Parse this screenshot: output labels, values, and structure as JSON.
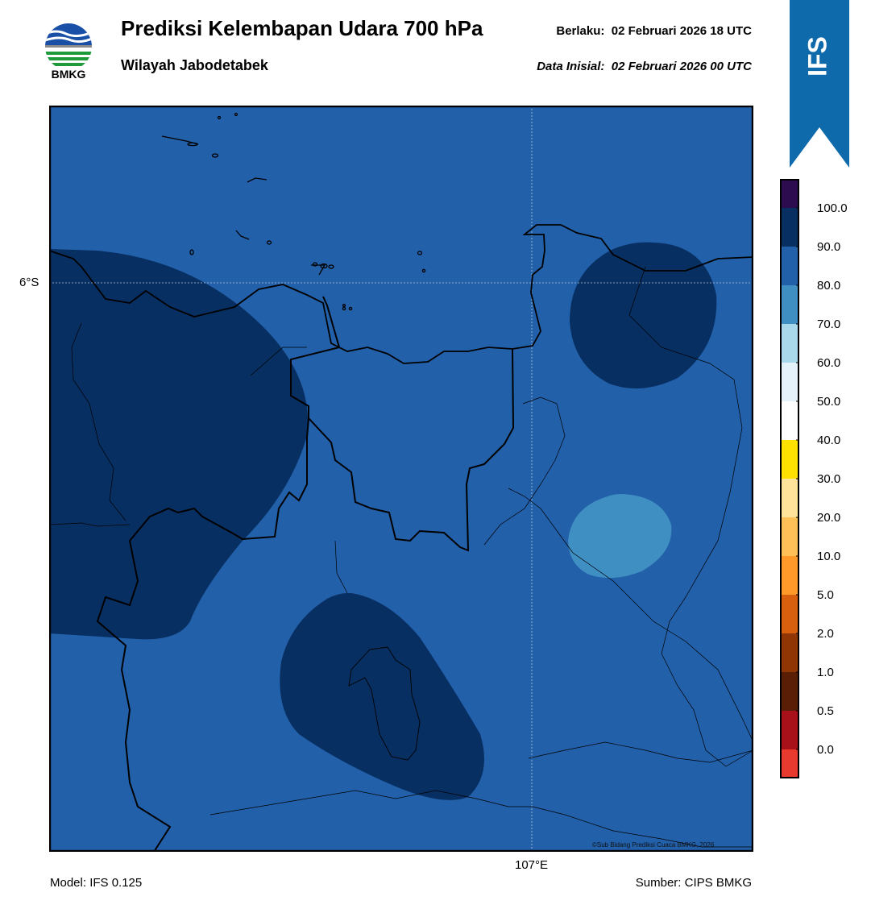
{
  "header": {
    "logo_text": "BMKG",
    "title": "Prediksi Kelembapan Udara 700 hPa",
    "subtitle": "Wilayah Jabodetabek",
    "valid_label": "Berlaku:",
    "valid_value": "02 Februari 2026 18 UTC",
    "init_label": "Data Inisial:",
    "init_value": "02 Februari 2026 00 UTC"
  },
  "badge": {
    "text": "IFS",
    "color": "#0e6aab"
  },
  "map": {
    "lat_label": "6°S",
    "lon_label": "107°E",
    "credit": "©Sub Bidang Prediksi Cuaca BMKG, 2026",
    "field_colors": {
      "80-90": "#2260aa",
      "90-100": "#082f62",
      "70-80": "#3f8fc3",
      "coastline": "#000000"
    }
  },
  "colorbar": {
    "labels": [
      "100.0",
      "90.0",
      "80.0",
      "70.0",
      "60.0",
      "50.0",
      "40.0",
      "30.0",
      "20.0",
      "10.0",
      "5.0",
      "2.0",
      "1.0",
      "0.5",
      "0.0"
    ],
    "colors": [
      "#2c0b4f",
      "#082f62",
      "#2260aa",
      "#3f8fc3",
      "#a8d8ea",
      "#e6f2fa",
      "#ffffff",
      "#ffe100",
      "#ffe39a",
      "#ffc157",
      "#ff9a2a",
      "#d85f0e",
      "#903605",
      "#5a1d06",
      "#a8101a",
      "#e83a2e"
    ]
  },
  "footer": {
    "model": "Model: IFS 0.125",
    "source": "Sumber: CIPS BMKG"
  }
}
